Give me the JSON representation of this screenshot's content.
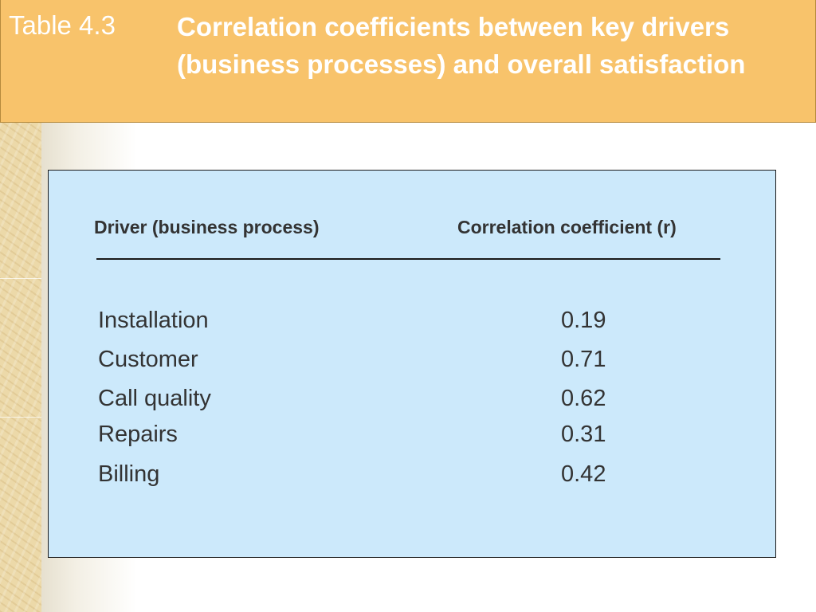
{
  "header": {
    "table_label": "Table 4.3",
    "title": "Correlation coefficients between key drivers (business processes) and overall satisfaction"
  },
  "table": {
    "columns": [
      "Driver (business process)",
      "Correlation coefficient (r)"
    ],
    "rows": [
      {
        "driver": "Installation",
        "r": "0.19"
      },
      {
        "driver": "Customer",
        "r": "0.71"
      },
      {
        "driver": "Call quality",
        "r": "0.62"
      },
      {
        "driver": "Repairs",
        "r": "0.31"
      },
      {
        "driver": "Billing",
        "r": "0.42"
      }
    ]
  },
  "colors": {
    "header_bg": "#f8c36b",
    "panel_bg": "#cce9fb",
    "text": "#333333"
  }
}
